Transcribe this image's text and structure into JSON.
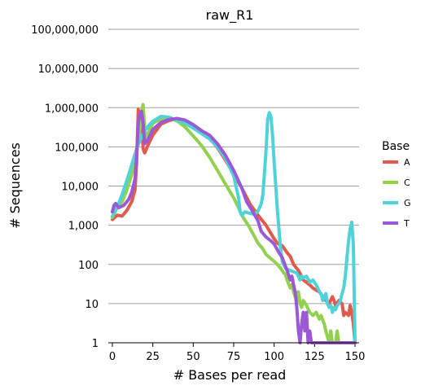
{
  "chart_data": {
    "type": "line",
    "title": "raw_R1",
    "xlabel": "# Bases per read",
    "ylabel": "# Sequences",
    "x_scale": "linear",
    "y_scale": "log",
    "xlim": [
      0,
      150
    ],
    "ylim": [
      1,
      100000000
    ],
    "xticks": [
      0,
      25,
      50,
      75,
      100,
      125,
      150
    ],
    "yticks": [
      {
        "value": 1,
        "label": "1"
      },
      {
        "value": 10,
        "label": "10"
      },
      {
        "value": 100,
        "label": "100"
      },
      {
        "value": 1000,
        "label": "1,000"
      },
      {
        "value": 10000,
        "label": "10,000"
      },
      {
        "value": 100000,
        "label": "100,000"
      },
      {
        "value": 1000000,
        "label": "1,000,000"
      },
      {
        "value": 10000000,
        "label": "10,000,000"
      },
      {
        "value": 100000000,
        "label": "100,000,000"
      }
    ],
    "grid": true,
    "legend": {
      "title": "Base",
      "position": "right"
    },
    "series": [
      {
        "name": "A",
        "color": "#e05b4b",
        "points": [
          [
            0,
            1400
          ],
          [
            3,
            1800
          ],
          [
            6,
            1700
          ],
          [
            9,
            2400
          ],
          [
            12,
            4000
          ],
          [
            14,
            8000
          ],
          [
            15,
            40000
          ],
          [
            16,
            900000
          ],
          [
            17,
            700000
          ],
          [
            18,
            500000
          ],
          [
            19,
            90000
          ],
          [
            20,
            70000
          ],
          [
            22,
            110000
          ],
          [
            25,
            200000
          ],
          [
            30,
            380000
          ],
          [
            35,
            470000
          ],
          [
            40,
            520000
          ],
          [
            45,
            480000
          ],
          [
            50,
            360000
          ],
          [
            55,
            260000
          ],
          [
            60,
            170000
          ],
          [
            65,
            95000
          ],
          [
            70,
            45000
          ],
          [
            75,
            20000
          ],
          [
            80,
            9000
          ],
          [
            85,
            3500
          ],
          [
            90,
            1800
          ],
          [
            95,
            1000
          ],
          [
            100,
            450
          ],
          [
            102,
            350
          ],
          [
            105,
            300
          ],
          [
            108,
            200
          ],
          [
            110,
            160
          ],
          [
            112,
            100
          ],
          [
            115,
            70
          ],
          [
            117,
            50
          ],
          [
            118,
            40
          ],
          [
            120,
            35
          ],
          [
            122,
            30
          ],
          [
            124,
            25
          ],
          [
            126,
            22
          ],
          [
            128,
            20
          ],
          [
            130,
            15
          ],
          [
            132,
            12
          ],
          [
            134,
            10
          ],
          [
            136,
            15
          ],
          [
            137,
            12
          ],
          [
            138,
            9
          ],
          [
            140,
            12
          ],
          [
            142,
            10
          ],
          [
            143,
            5
          ],
          [
            144,
            6
          ],
          [
            146,
            5
          ],
          [
            147,
            9
          ],
          [
            148,
            6
          ],
          [
            149,
            3
          ],
          [
            150,
            1
          ]
        ]
      },
      {
        "name": "C",
        "color": "#92d050",
        "points": [
          [
            0,
            1600
          ],
          [
            3,
            2800
          ],
          [
            6,
            4000
          ],
          [
            9,
            8000
          ],
          [
            12,
            20000
          ],
          [
            15,
            70000
          ],
          [
            17,
            300000
          ],
          [
            18,
            800000
          ],
          [
            19,
            1200000
          ],
          [
            20,
            300000
          ],
          [
            21,
            150000
          ],
          [
            23,
            280000
          ],
          [
            25,
            400000
          ],
          [
            30,
            520000
          ],
          [
            35,
            540000
          ],
          [
            40,
            460000
          ],
          [
            45,
            320000
          ],
          [
            50,
            190000
          ],
          [
            55,
            110000
          ],
          [
            60,
            55000
          ],
          [
            65,
            25000
          ],
          [
            70,
            11000
          ],
          [
            75,
            5000
          ],
          [
            78,
            2800
          ],
          [
            80,
            1800
          ],
          [
            84,
            1000
          ],
          [
            88,
            500
          ],
          [
            90,
            350
          ],
          [
            93,
            250
          ],
          [
            95,
            180
          ],
          [
            98,
            140
          ],
          [
            100,
            120
          ],
          [
            102,
            100
          ],
          [
            104,
            80
          ],
          [
            106,
            60
          ],
          [
            107,
            55
          ],
          [
            108,
            40
          ],
          [
            110,
            25
          ],
          [
            111,
            30
          ],
          [
            112,
            20
          ],
          [
            113,
            15
          ],
          [
            114,
            12
          ],
          [
            115,
            20
          ],
          [
            116,
            10
          ],
          [
            117,
            8
          ],
          [
            118,
            12
          ],
          [
            120,
            9
          ],
          [
            122,
            6
          ],
          [
            124,
            5
          ],
          [
            126,
            6
          ],
          [
            128,
            4
          ],
          [
            129,
            5
          ],
          [
            131,
            3
          ],
          [
            132,
            2
          ],
          [
            134,
            1
          ],
          [
            135,
            2
          ],
          [
            136,
            1
          ],
          [
            138,
            1
          ],
          [
            139,
            2
          ],
          [
            140,
            1
          ],
          [
            150,
            1
          ]
        ]
      },
      {
        "name": "G",
        "color": "#4fd3d8",
        "points": [
          [
            0,
            1700
          ],
          [
            3,
            3000
          ],
          [
            6,
            6000
          ],
          [
            9,
            14000
          ],
          [
            12,
            35000
          ],
          [
            15,
            90000
          ],
          [
            18,
            180000
          ],
          [
            20,
            260000
          ],
          [
            22,
            330000
          ],
          [
            25,
            450000
          ],
          [
            30,
            600000
          ],
          [
            35,
            570000
          ],
          [
            40,
            480000
          ],
          [
            45,
            400000
          ],
          [
            50,
            300000
          ],
          [
            55,
            220000
          ],
          [
            60,
            160000
          ],
          [
            65,
            100000
          ],
          [
            70,
            50000
          ],
          [
            75,
            18000
          ],
          [
            78,
            5000
          ],
          [
            79,
            2200
          ],
          [
            80,
            1800
          ],
          [
            82,
            2200
          ],
          [
            85,
            2000
          ],
          [
            88,
            1900
          ],
          [
            90,
            2300
          ],
          [
            92,
            3500
          ],
          [
            93,
            6000
          ],
          [
            94,
            20000
          ],
          [
            95,
            80000
          ],
          [
            96,
            500000
          ],
          [
            97,
            750000
          ],
          [
            98,
            600000
          ],
          [
            99,
            200000
          ],
          [
            100,
            40000
          ],
          [
            101,
            10000
          ],
          [
            102,
            2500
          ],
          [
            103,
            800
          ],
          [
            104,
            250
          ],
          [
            105,
            120
          ],
          [
            107,
            80
          ],
          [
            110,
            70
          ],
          [
            112,
            65
          ],
          [
            114,
            60
          ],
          [
            116,
            40
          ],
          [
            117,
            50
          ],
          [
            118,
            45
          ],
          [
            120,
            50
          ],
          [
            122,
            35
          ],
          [
            124,
            40
          ],
          [
            126,
            30
          ],
          [
            127,
            25
          ],
          [
            128,
            20
          ],
          [
            129,
            18
          ],
          [
            130,
            12
          ],
          [
            132,
            18
          ],
          [
            133,
            10
          ],
          [
            134,
            8
          ],
          [
            135,
            9
          ],
          [
            136,
            6
          ],
          [
            137,
            8
          ],
          [
            138,
            7
          ],
          [
            139,
            9
          ],
          [
            140,
            10
          ],
          [
            141,
            12
          ],
          [
            142,
            18
          ],
          [
            143,
            25
          ],
          [
            144,
            50
          ],
          [
            145,
            150
          ],
          [
            146,
            400
          ],
          [
            147,
            800
          ],
          [
            148,
            1200
          ],
          [
            149,
            300
          ],
          [
            150,
            1
          ]
        ]
      },
      {
        "name": "T",
        "color": "#9b59d6",
        "points": [
          [
            0,
            2200
          ],
          [
            1,
            3200
          ],
          [
            2,
            3600
          ],
          [
            4,
            2800
          ],
          [
            7,
            3200
          ],
          [
            10,
            4500
          ],
          [
            12,
            7000
          ],
          [
            14,
            15000
          ],
          [
            15,
            60000
          ],
          [
            16,
            400000
          ],
          [
            17,
            700000
          ],
          [
            18,
            800000
          ],
          [
            19,
            400000
          ],
          [
            20,
            120000
          ],
          [
            22,
            150000
          ],
          [
            25,
            280000
          ],
          [
            30,
            420000
          ],
          [
            35,
            500000
          ],
          [
            40,
            530000
          ],
          [
            45,
            480000
          ],
          [
            50,
            370000
          ],
          [
            55,
            260000
          ],
          [
            60,
            200000
          ],
          [
            65,
            120000
          ],
          [
            70,
            60000
          ],
          [
            75,
            25000
          ],
          [
            80,
            9000
          ],
          [
            83,
            4000
          ],
          [
            86,
            2500
          ],
          [
            90,
            1300
          ],
          [
            92,
            700
          ],
          [
            95,
            500
          ],
          [
            98,
            400
          ],
          [
            100,
            330
          ],
          [
            103,
            200
          ],
          [
            105,
            150
          ],
          [
            107,
            90
          ],
          [
            108,
            70
          ],
          [
            110,
            40
          ],
          [
            111,
            50
          ],
          [
            112,
            30
          ],
          [
            113,
            20
          ],
          [
            114,
            8
          ],
          [
            115,
            2
          ],
          [
            116,
            1
          ],
          [
            117,
            3
          ],
          [
            118,
            6
          ],
          [
            119,
            2
          ],
          [
            120,
            6
          ],
          [
            121,
            1
          ],
          [
            122,
            2
          ],
          [
            123,
            1
          ],
          [
            125,
            1
          ],
          [
            150,
            1
          ]
        ]
      }
    ]
  }
}
